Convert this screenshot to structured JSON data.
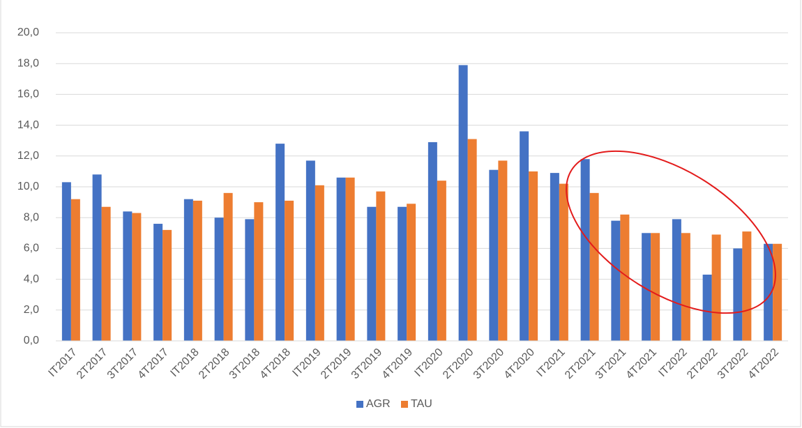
{
  "chart_data": {
    "type": "bar",
    "categories": [
      "IT2017",
      "2T2017",
      "3T2017",
      "4T2017",
      "IT2018",
      "2T2018",
      "3T2018",
      "4T2018",
      "IT2019",
      "2T2019",
      "3T2019",
      "4T2019",
      "IT2020",
      "2T2020",
      "3T2020",
      "4T2020",
      "IT2021",
      "2T2021",
      "3T2021",
      "4T2021",
      "IT2022",
      "2T2022",
      "3T2022",
      "4T2022"
    ],
    "series": [
      {
        "name": "AGR",
        "color": "#4472c4",
        "values": [
          10.3,
          10.8,
          8.4,
          7.6,
          9.2,
          8.0,
          7.9,
          12.8,
          11.7,
          10.6,
          8.7,
          8.7,
          12.9,
          17.9,
          11.1,
          13.6,
          10.9,
          11.8,
          7.8,
          7.0,
          7.9,
          4.3,
          6.0,
          6.3
        ]
      },
      {
        "name": "TAU",
        "color": "#ed7d31",
        "values": [
          9.2,
          8.7,
          8.3,
          7.2,
          9.1,
          9.6,
          9.0,
          9.1,
          10.1,
          10.6,
          9.7,
          8.9,
          10.4,
          13.1,
          11.7,
          11.0,
          10.2,
          9.6,
          8.2,
          7.0,
          7.0,
          6.9,
          7.1,
          6.3
        ]
      }
    ],
    "ylim": [
      0,
      20
    ],
    "yticks": [
      {
        "value": 0,
        "label": "0,0"
      },
      {
        "value": 2,
        "label": "2,0"
      },
      {
        "value": 4,
        "label": "4,0"
      },
      {
        "value": 6,
        "label": "6,0"
      },
      {
        "value": 8,
        "label": "8,0"
      },
      {
        "value": 10,
        "label": "10,0"
      },
      {
        "value": 12,
        "label": "12,0"
      },
      {
        "value": 14,
        "label": "14,0"
      },
      {
        "value": 16,
        "label": "16,0"
      },
      {
        "value": 18,
        "label": "18,0"
      },
      {
        "value": 20,
        "label": "20,0"
      }
    ],
    "grid": true,
    "legend": "bottom"
  }
}
